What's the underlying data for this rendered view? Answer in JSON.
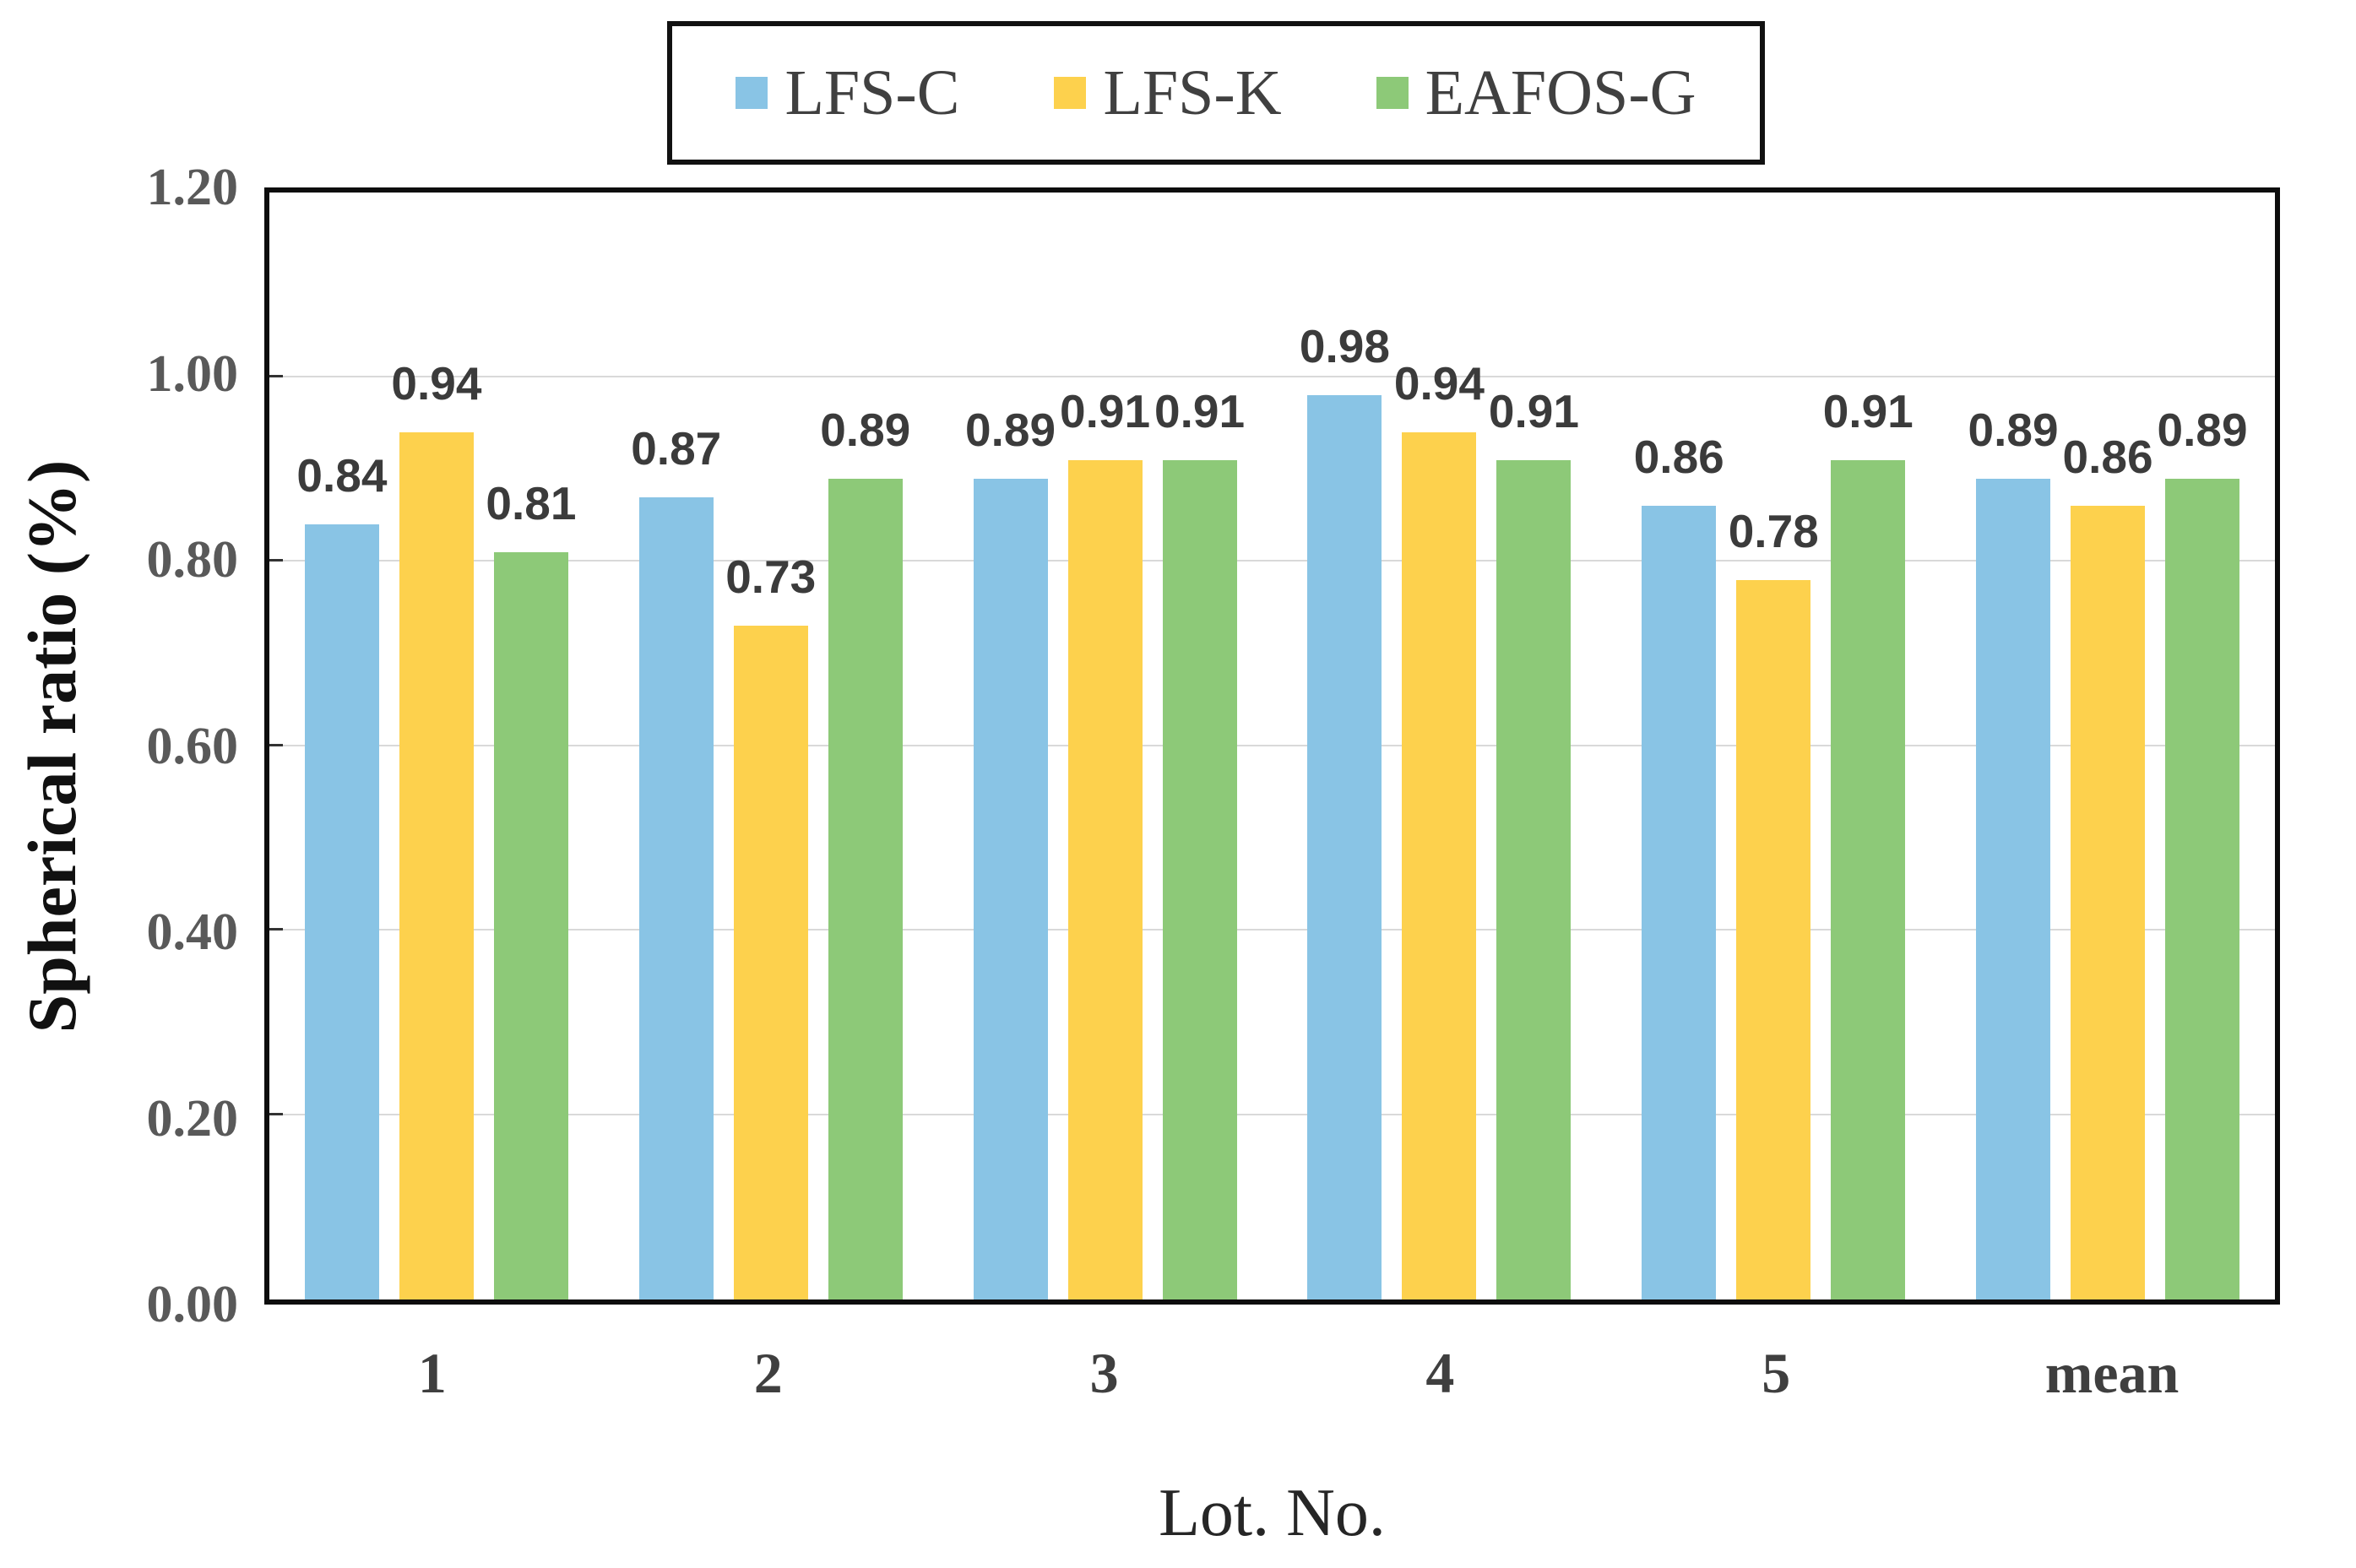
{
  "chart_data": {
    "type": "bar",
    "title": "",
    "categories": [
      "1",
      "2",
      "3",
      "4",
      "5",
      "mean"
    ],
    "series": [
      {
        "name": "LFS-C",
        "color": "#89C4E5",
        "values": [
          0.84,
          0.87,
          0.89,
          0.98,
          0.86,
          0.89
        ],
        "labels": [
          "0.84",
          "0.87",
          "0.89",
          "0.98",
          "0.86",
          "0.89"
        ]
      },
      {
        "name": "LFS-K",
        "color": "#FDD14D",
        "values": [
          0.94,
          0.73,
          0.91,
          0.94,
          0.78,
          0.86
        ],
        "labels": [
          "0.94",
          "0.73",
          "0.91",
          "0.94",
          "0.78",
          "0.86"
        ]
      },
      {
        "name": "EAFOS-G",
        "color": "#8DC978",
        "values": [
          0.81,
          0.89,
          0.91,
          0.91,
          0.91,
          0.89
        ],
        "labels": [
          "0.81",
          "0.89",
          "0.91",
          "0.91",
          "0.91",
          "0.89"
        ]
      }
    ],
    "xlabel": "Lot. No.",
    "ylabel": "Spherical ratio (%)",
    "ylim": [
      0,
      1.2
    ],
    "yticks": [
      {
        "v": 0.0,
        "label": "0.00"
      },
      {
        "v": 0.2,
        "label": "0.20"
      },
      {
        "v": 0.4,
        "label": "0.40"
      },
      {
        "v": 0.6,
        "label": "0.60"
      },
      {
        "v": 0.8,
        "label": "0.80"
      },
      {
        "v": 1.0,
        "label": "1.00"
      },
      {
        "v": 1.2,
        "label": "1.20"
      }
    ],
    "grid": true,
    "legend_position": "top",
    "data_labels_shown": true
  }
}
